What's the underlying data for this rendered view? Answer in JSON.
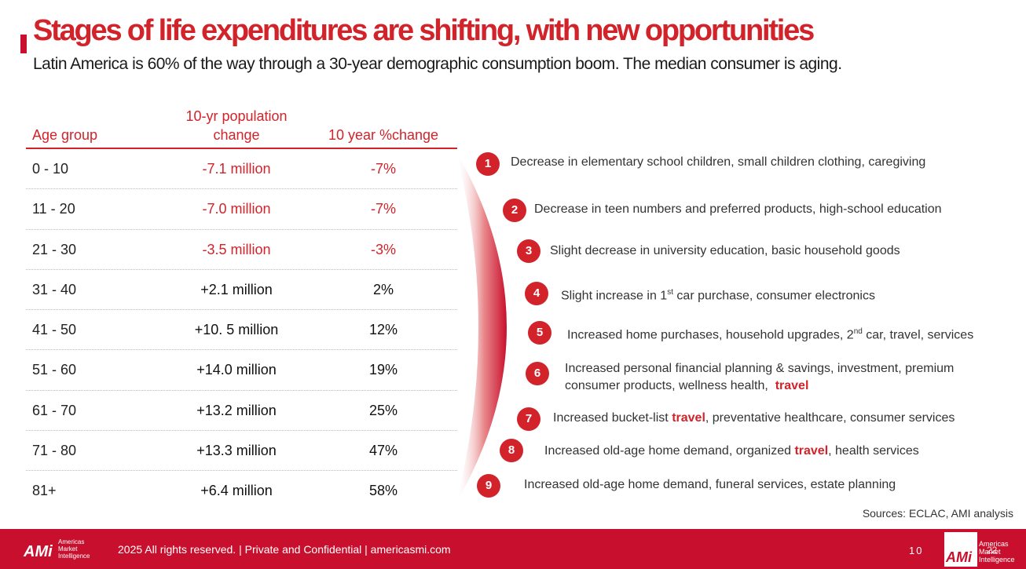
{
  "header": {
    "title": "Stages of life expenditures are shifting, with new opportunities",
    "subtitle": "Latin America is 60% of the way through a 30-year demographic consumption boom.  The median consumer is aging."
  },
  "table": {
    "headers": {
      "age": "Age group",
      "pop_line1": "10-yr population",
      "pop_line2": "change",
      "pct": "10 year %change"
    },
    "rows": [
      {
        "age": "0 - 10",
        "pop": "-7.1 million",
        "pct": "-7%"
      },
      {
        "age": "11 - 20",
        "pop": "-7.0 million",
        "pct": "-7%"
      },
      {
        "age": "21 - 30",
        "pop": "-3.5 million",
        "pct": "-3%"
      },
      {
        "age": "31 - 40",
        "pop": "+2.1 million",
        "pct": "2%"
      },
      {
        "age": "41 - 50",
        "pop": "+10. 5 million",
        "pct": "12%"
      },
      {
        "age": "51 - 60",
        "pop": "+14.0 million",
        "pct": "19%"
      },
      {
        "age": "61 - 70",
        "pop": "+13.2 million",
        "pct": "25%"
      },
      {
        "age": "71 - 80",
        "pop": "+13.3 million",
        "pct": "47%"
      },
      {
        "age": "81+",
        "pop": "+6.4 million",
        "pct": "58%"
      }
    ]
  },
  "opportunities": [
    {
      "num": "1",
      "text": "Decrease in elementary school children, small children clothing, caregiving"
    },
    {
      "num": "2",
      "text": "Decrease in teen numbers and preferred products, high-school education"
    },
    {
      "num": "3",
      "text": "Slight decrease in university education, basic household goods"
    },
    {
      "num": "4",
      "text_a": "Slight increase in 1",
      "sup": "st",
      "text_b": " car purchase, consumer electronics"
    },
    {
      "num": "5",
      "text_a": "Increased home purchases, household upgrades, 2",
      "sup": "nd",
      "text_b": " car, travel, services"
    },
    {
      "num": "6",
      "line1": "Increased personal financial planning & savings, investment, premium",
      "line2": "consumer products, wellness health,",
      "highlight": "travel"
    },
    {
      "num": "7",
      "text_a": "Increased bucket-list ",
      "highlight": "travel",
      "text_b": ", preventative healthcare, consumer services"
    },
    {
      "num": "8",
      "text_a": "Increased old-age home demand, organized ",
      "highlight": "travel",
      "text_b": ", health services"
    },
    {
      "num": "9",
      "text": "Increased old-age home demand, funeral services, estate planning"
    }
  ],
  "sources": "Sources: ECLAC, AMI analysis",
  "footer": {
    "logo": "AMi",
    "logo_sub_1": "Americas",
    "logo_sub_2": "Market",
    "logo_sub_3": "Intelligence",
    "text": "2025 All rights reserved. | Private and Confidential | americasmi.com",
    "page": "10",
    "slide": "22"
  },
  "colors": {
    "accent": "#d2232a",
    "footer": "#c8102e"
  }
}
